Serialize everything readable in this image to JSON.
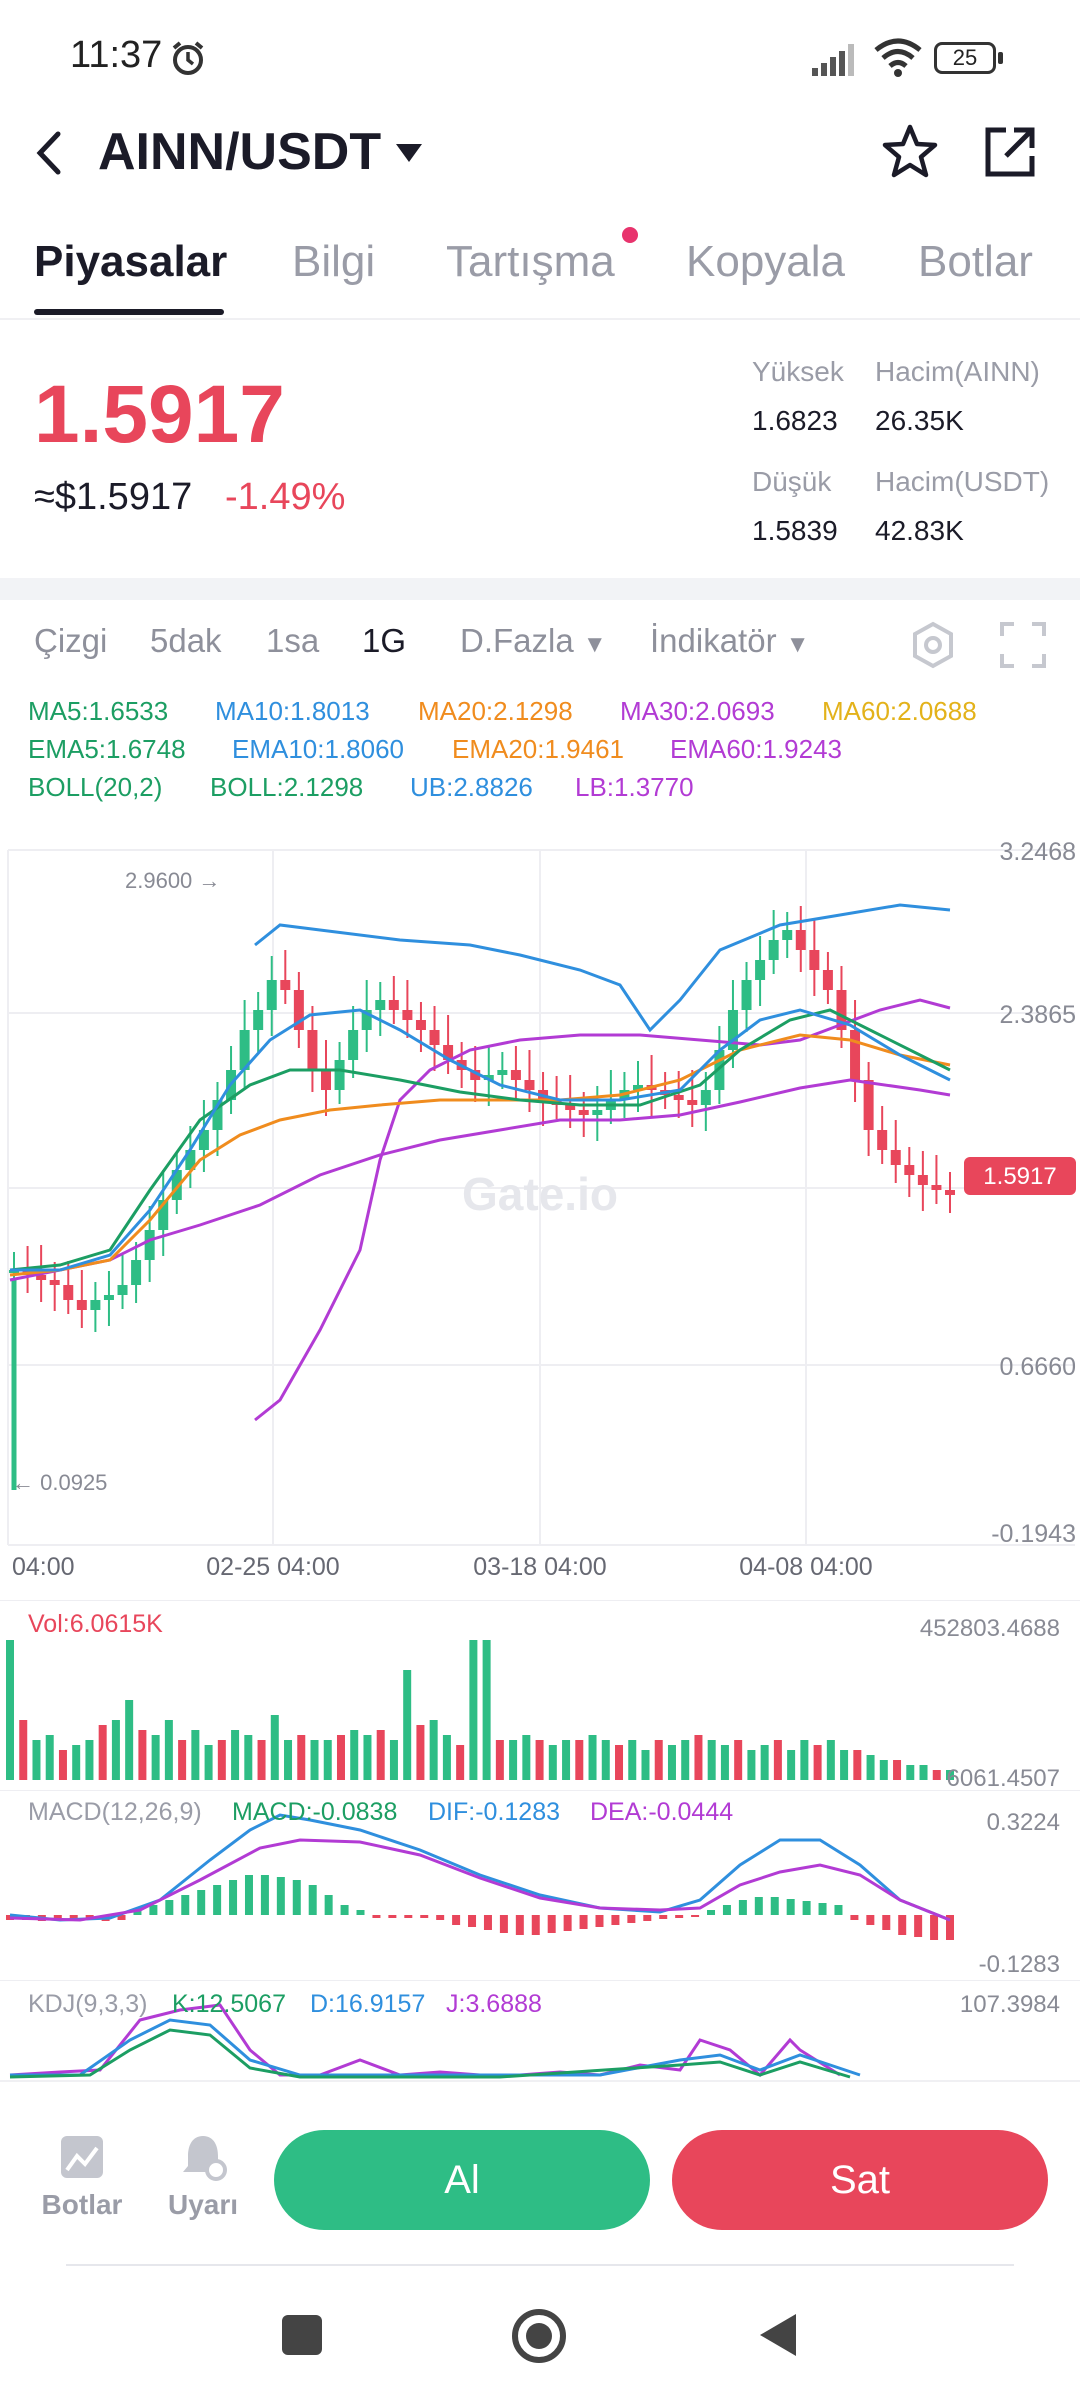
{
  "status_bar": {
    "time": "11:37",
    "battery": "25"
  },
  "header": {
    "pair": "AINN/USDT"
  },
  "tabs": [
    {
      "label": "Piyasalar",
      "active": true
    },
    {
      "label": "Bilgi"
    },
    {
      "label": "Tartışma",
      "dot": true
    },
    {
      "label": "Kopyala"
    },
    {
      "label": "Botlar"
    }
  ],
  "ticker": {
    "price": "1.5917",
    "usd": "≈$1.5917",
    "change": "-1.49%",
    "high_label": "Yüksek",
    "high": "1.6823",
    "low_label": "Düşük",
    "low": "1.5839",
    "vol_base_label": "Hacim(AINN)",
    "vol_base": "26.35K",
    "vol_quote_label": "Hacim(USDT)",
    "vol_quote": "42.83K"
  },
  "toolbar": {
    "items": [
      "Çizgi",
      "5dak",
      "1sa",
      "1G"
    ],
    "active": "1G",
    "more": "D.Fazla",
    "indicator": "İndikatör"
  },
  "indicators": {
    "ma5": "MA5:1.6533",
    "ma10": "MA10:1.8013",
    "ma20": "MA20:2.1298",
    "ma30": "MA30:2.0693",
    "ma60": "MA60:2.0688",
    "ema5": "EMA5:1.6748",
    "ema10": "EMA10:1.8060",
    "ema20": "EMA20:1.9461",
    "ema60": "EMA60:1.9243",
    "boll": "BOLL(20,2)",
    "boll_mid": "BOLL:2.1298",
    "ub": "UB:2.8826",
    "lb": "LB:1.3770"
  },
  "colors": {
    "up": "#2ebd85",
    "down": "#e8465b",
    "blue": "#2f8fde",
    "orange": "#f08c1e",
    "purple": "#b23bd4",
    "gold": "#e3b21a",
    "green": "#1c9e63"
  },
  "chart_data": {
    "type": "candlestick",
    "y_axis_labels": [
      "3.2468",
      "2.3865",
      "0.6660",
      "-0.1943"
    ],
    "x_axis_labels": [
      "04:00",
      "02-25 04:00",
      "03-18 04:00",
      "04-08 04:00"
    ],
    "high_marker": "2.9600",
    "low_marker": "0.0925",
    "current_price_tag": "1.5917",
    "watermark": "Gate.io"
  },
  "volume": {
    "label": "Vol:6.0615K",
    "max": "452803.4688",
    "min": "6061.4507"
  },
  "macd": {
    "label": "MACD(12,26,9)",
    "macd": "MACD:-0.0838",
    "dif": "DIF:-0.1283",
    "dea": "DEA:-0.0444",
    "max": "0.3224",
    "min": "-0.1283"
  },
  "kdj": {
    "label": "KDJ(9,3,3)",
    "k": "K:12.5067",
    "d": "D:16.9157",
    "j": "J:3.6888",
    "max": "107.3984"
  },
  "bottom_bar": {
    "bots": "Botlar",
    "alert": "Uyarı",
    "buy": "Al",
    "sell": "Sat"
  }
}
